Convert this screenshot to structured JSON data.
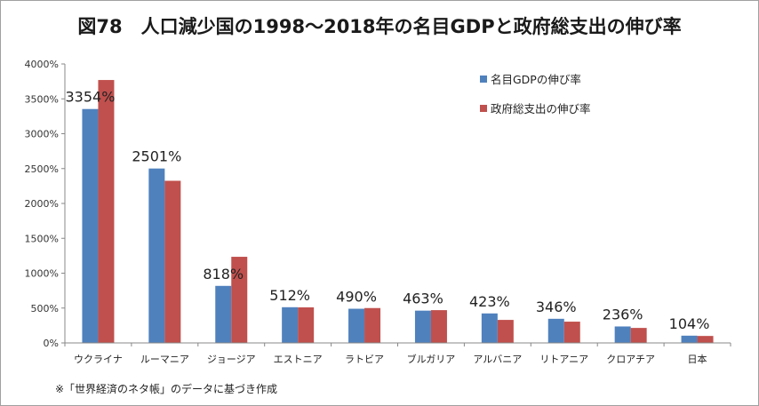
{
  "chart_data": {
    "type": "bar",
    "title": "図78　人口減少国の1998〜2018年の名目GDPと政府総支出の伸び率",
    "categories": [
      "ウクライナ",
      "ルーマニア",
      "ジョージア",
      "エストニア",
      "ラトビア",
      "ブルガリア",
      "アルバニア",
      "リトアニア",
      "クロアチア",
      "日本"
    ],
    "series": [
      {
        "name": "名目GDPの伸び率",
        "color": "#4f81bd",
        "values": [
          3354,
          2501,
          818,
          512,
          490,
          463,
          423,
          346,
          236,
          104
        ]
      },
      {
        "name": "政府総支出の伸び率",
        "color": "#c0504d",
        "values": [
          3770,
          2325,
          1235,
          510,
          500,
          470,
          330,
          305,
          215,
          100
        ]
      }
    ],
    "data_labels": [
      "3354%",
      "2501%",
      "818%",
      "512%",
      "490%",
      "463%",
      "423%",
      "346%",
      "236%",
      "104%"
    ],
    "ylim": [
      0,
      4000
    ],
    "yticks": [
      0,
      500,
      1000,
      1500,
      2000,
      2500,
      3000,
      3500,
      4000
    ],
    "ytick_labels": [
      "0%",
      "500%",
      "1000%",
      "1500%",
      "2000%",
      "2500%",
      "3000%",
      "3500%",
      "4000%"
    ],
    "xlabel": "",
    "ylabel": "",
    "legend_position": "top-right",
    "grid": false
  },
  "note": "※「世界経済のネタ帳」のデータに基づき作成"
}
